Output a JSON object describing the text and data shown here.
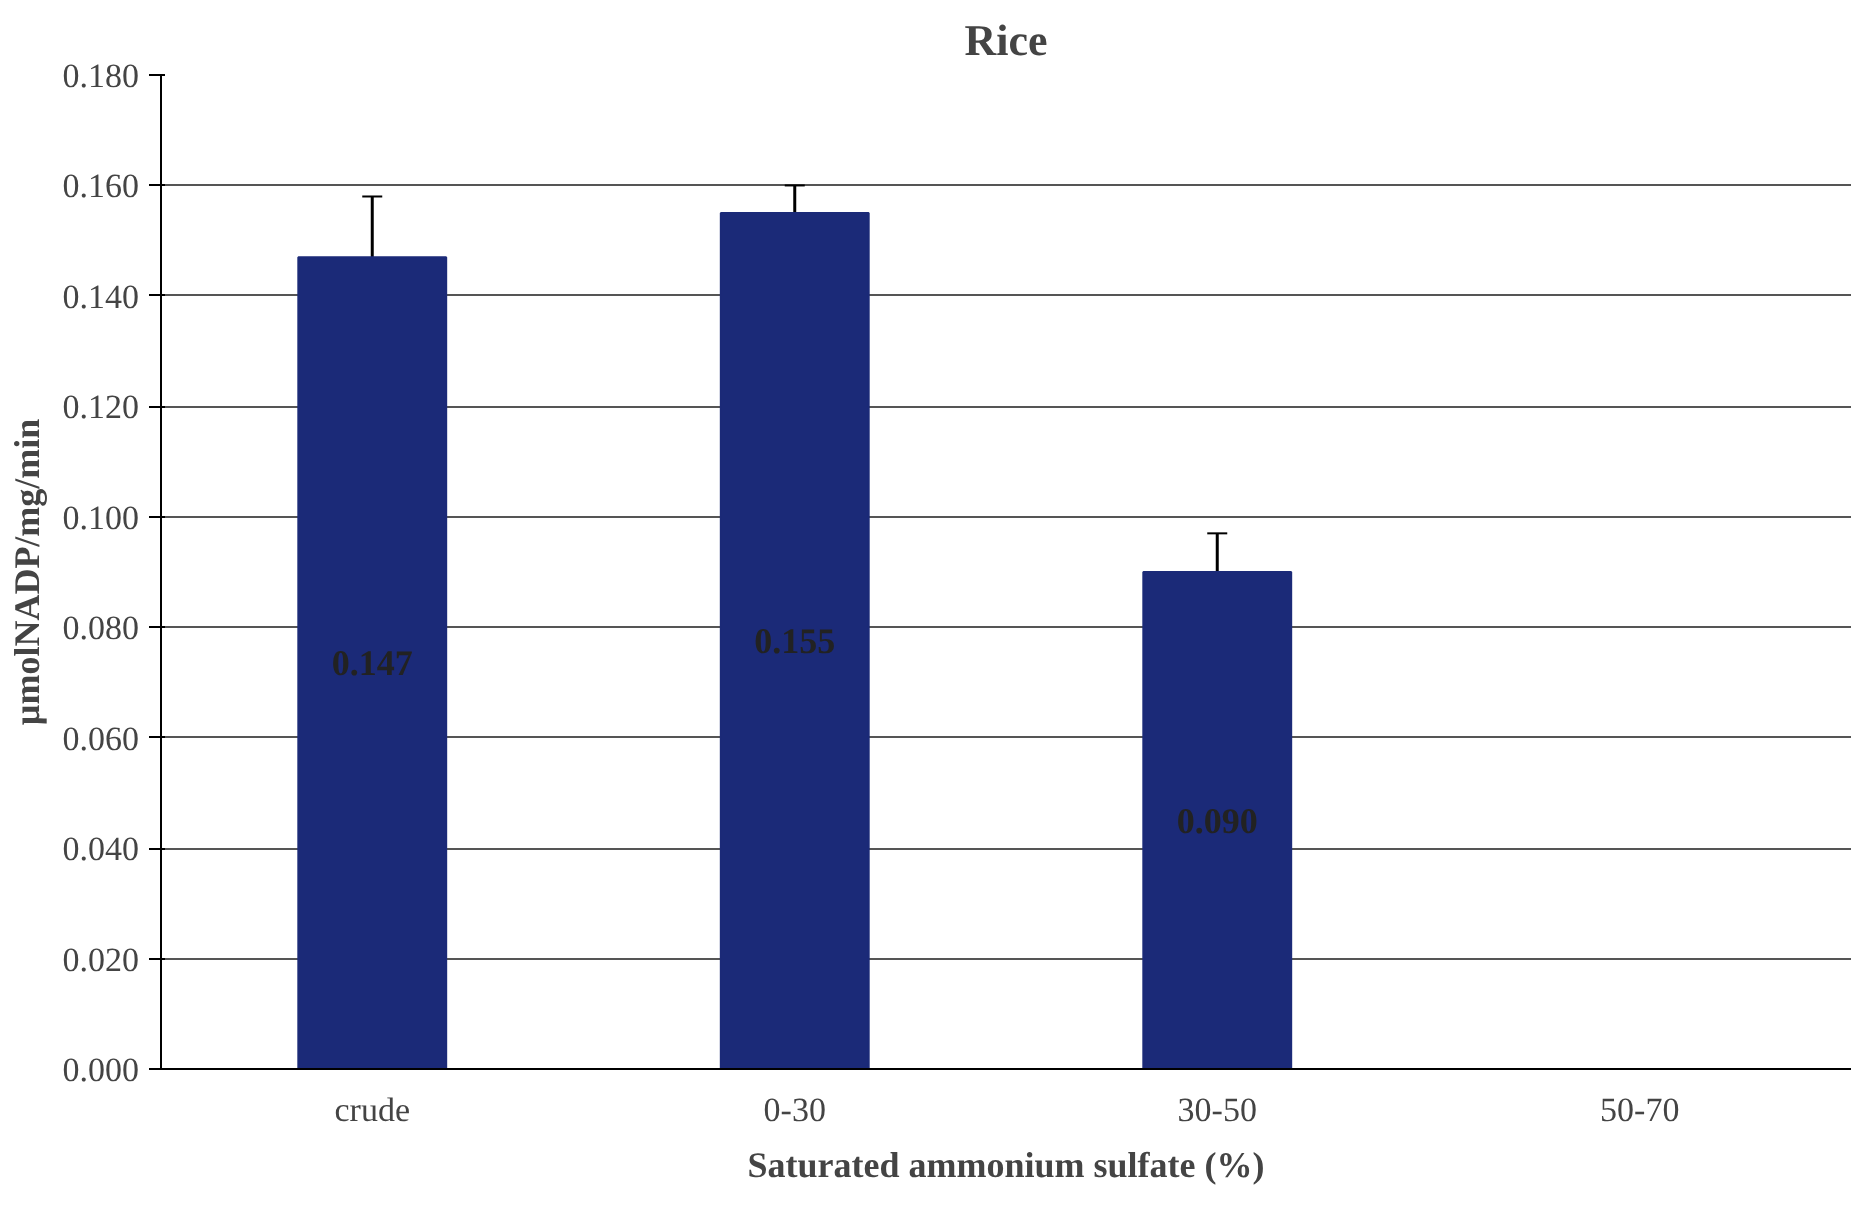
{
  "chart_data": {
    "type": "bar",
    "title": "Rice",
    "xlabel": "Saturated ammonium sulfate (%)",
    "ylabel": "µmolNADP/mg/min",
    "categories": [
      "crude",
      "0-30",
      "30-50",
      "50-70"
    ],
    "values": [
      0.147,
      0.155,
      0.09,
      null
    ],
    "errors": [
      0.011,
      0.005,
      0.007,
      null
    ],
    "value_labels": [
      "0.147",
      "0.155",
      "0.090",
      null
    ],
    "color": "#1b2a78",
    "ylim": [
      0,
      0.18
    ],
    "yticks": [
      {
        "value": 0,
        "label": "0.000"
      },
      {
        "value": 0.02,
        "label": "0.020"
      },
      {
        "value": 0.04,
        "label": "0.040"
      },
      {
        "value": 0.06,
        "label": "0.060"
      },
      {
        "value": 0.08,
        "label": "0.080"
      },
      {
        "value": 0.1,
        "label": "0.100"
      },
      {
        "value": 0.12,
        "label": "0.120"
      },
      {
        "value": 0.14,
        "label": "0.140"
      },
      {
        "value": 0.16,
        "label": "0.160"
      },
      {
        "value": 0.18,
        "label": "0.180"
      }
    ],
    "grid": "y"
  }
}
